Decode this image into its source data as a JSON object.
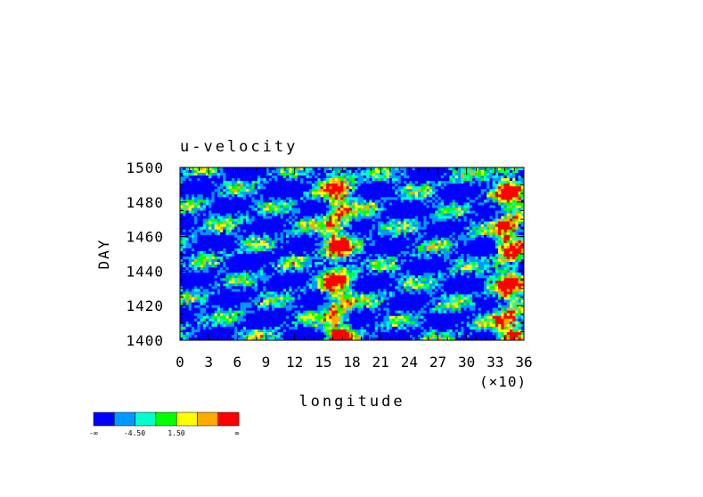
{
  "chart_data": {
    "type": "heatmap",
    "title": "u-velocity",
    "xlabel": "longitude",
    "ylabel": "DAY",
    "x_multiplier_label": "(×10)",
    "xlim": [
      0,
      36
    ],
    "ylim": [
      1400,
      1500
    ],
    "x_ticks": [
      "0",
      "3",
      "6",
      "9",
      "12",
      "15",
      "18",
      "21",
      "24",
      "27",
      "30",
      "33",
      "36"
    ],
    "y_ticks": [
      "1400",
      "1420",
      "1440",
      "1460",
      "1480",
      "1500"
    ],
    "colorbar": {
      "colors": [
        "#0000ff",
        "#0099ff",
        "#00ffcc",
        "#00ff00",
        "#ffff00",
        "#ffaa00",
        "#ff0000"
      ],
      "labels": [
        "-∞",
        "-4.50",
        "1.50",
        "∞"
      ]
    },
    "field_bias": {
      "cells_x": 36,
      "cells_y": 20,
      "description_levels": "0=low blue .. 6=high red",
      "warm_longitudes": [
        16,
        17,
        34,
        35
      ],
      "cold_longitudes": [
        4,
        8,
        12,
        23,
        26,
        29
      ]
    }
  }
}
